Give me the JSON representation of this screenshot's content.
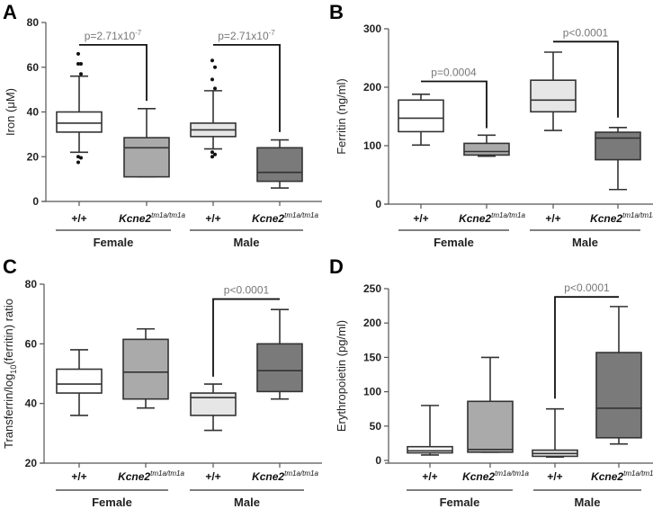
{
  "chart_data": [
    {
      "type": "box",
      "panel": "A",
      "ylabel": "Iron (μM)",
      "ylim": [
        0,
        80
      ],
      "yticks": [
        0,
        20,
        40,
        60,
        80
      ],
      "groups": [
        "Female",
        "Male"
      ],
      "categories": [
        {
          "main": "+/+",
          "sup": ""
        },
        {
          "main": "Kcne2",
          "sup": "tm1a/tm1a"
        },
        {
          "main": "+/+",
          "sup": ""
        },
        {
          "main": "Kcne2",
          "sup": "tm1a/tm1a"
        }
      ],
      "boxes": [
        {
          "group": "Female",
          "genotype": "+/+",
          "fill": "#ffffff",
          "whisker_low": 22,
          "q1": 31,
          "median": 35,
          "q3": 40,
          "whisker_high": 56,
          "outliers": [
            66,
            61.5,
            61.5,
            57,
            20,
            19.5,
            17.5
          ]
        },
        {
          "group": "Female",
          "genotype": "Kcne2 tm1a/tm1a",
          "fill": "#aaaaaa",
          "whisker_low": 11,
          "q1": 11,
          "median": 24,
          "q3": 28.5,
          "whisker_high": 41.5,
          "outliers": []
        },
        {
          "group": "Male",
          "genotype": "+/+",
          "fill": "#e6e6e6",
          "whisker_low": 23.5,
          "q1": 29,
          "median": 32,
          "q3": 35,
          "whisker_high": 49.5,
          "outliers": [
            63,
            60,
            54.5,
            50.5,
            22,
            21,
            20
          ]
        },
        {
          "group": "Male",
          "genotype": "Kcne2 tm1a/tm1a",
          "fill": "#7a7a7a",
          "whisker_low": 6,
          "q1": 9,
          "median": 13,
          "q3": 24,
          "whisker_high": 27.5,
          "outliers": []
        }
      ],
      "brackets": [
        {
          "from": 0,
          "to": 1,
          "top": 70,
          "left_end": 70,
          "right_end": 45,
          "label": "p=2.71x10",
          "label_sup": "-7"
        },
        {
          "from": 2,
          "to": 3,
          "top": 70,
          "left_end": 70,
          "right_end": 31,
          "label": "p=2.71x10",
          "label_sup": "-7"
        }
      ]
    },
    {
      "type": "box",
      "panel": "B",
      "ylabel": "Ferritin (ng/ml)",
      "ylim": [
        0,
        300
      ],
      "yticks": [
        0,
        100,
        200,
        300
      ],
      "groups": [
        "Female",
        "Male"
      ],
      "categories": [
        {
          "main": "+/+",
          "sup": ""
        },
        {
          "main": "Kcne2",
          "sup": "tm1a/tm1a"
        },
        {
          "main": "+/+",
          "sup": ""
        },
        {
          "main": "Kcne2",
          "sup": "tm1a/tm1a"
        }
      ],
      "boxes": [
        {
          "group": "Female",
          "genotype": "+/+",
          "fill": "#ffffff",
          "whisker_low": 101,
          "q1": 124,
          "median": 147,
          "q3": 178,
          "whisker_high": 188,
          "outliers": []
        },
        {
          "group": "Female",
          "genotype": "Kcne2 tm1a/tm1a",
          "fill": "#aaaaaa",
          "whisker_low": 82,
          "q1": 84,
          "median": 90,
          "q3": 104,
          "whisker_high": 118,
          "outliers": []
        },
        {
          "group": "Male",
          "genotype": "+/+",
          "fill": "#e6e6e6",
          "whisker_low": 126,
          "q1": 158,
          "median": 178,
          "q3": 212,
          "whisker_high": 260,
          "outliers": []
        },
        {
          "group": "Male",
          "genotype": "Kcne2 tm1a/tm1a",
          "fill": "#7a7a7a",
          "whisker_low": 25,
          "q1": 76,
          "median": 113,
          "q3": 123,
          "whisker_high": 131,
          "outliers": []
        }
      ],
      "brackets": [
        {
          "from": 0,
          "to": 1,
          "top": 210,
          "left_end": 210,
          "right_end": 130,
          "label": "p=0.0004",
          "label_sup": ""
        },
        {
          "from": 2,
          "to": 3,
          "top": 278,
          "left_end": 278,
          "right_end": 148,
          "label": "p<0.0001",
          "label_sup": ""
        }
      ]
    },
    {
      "type": "box",
      "panel": "C",
      "ylabel": "Transferrin/log",
      "ylabel_sub": "10",
      "ylabel_tail": "(ferritin) ratio",
      "ylim": [
        20,
        80
      ],
      "yticks": [
        20,
        40,
        60,
        80
      ],
      "groups": [
        "Female",
        "Male"
      ],
      "categories": [
        {
          "main": "+/+",
          "sup": ""
        },
        {
          "main": "Kcne2",
          "sup": "tm1a/tm1a"
        },
        {
          "main": "+/+",
          "sup": ""
        },
        {
          "main": "Kcne2",
          "sup": "tm1a/tm1a"
        }
      ],
      "boxes": [
        {
          "group": "Female",
          "genotype": "+/+",
          "fill": "#ffffff",
          "whisker_low": 36,
          "q1": 43.5,
          "median": 46.5,
          "q3": 51.5,
          "whisker_high": 58,
          "outliers": []
        },
        {
          "group": "Female",
          "genotype": "Kcne2 tm1a/tm1a",
          "fill": "#aaaaaa",
          "whisker_low": 38.5,
          "q1": 41.5,
          "median": 50.5,
          "q3": 61.5,
          "whisker_high": 65,
          "outliers": []
        },
        {
          "group": "Male",
          "genotype": "+/+",
          "fill": "#e6e6e6",
          "whisker_low": 31,
          "q1": 36,
          "median": 42,
          "q3": 43.5,
          "whisker_high": 46.5,
          "outliers": []
        },
        {
          "group": "Male",
          "genotype": "Kcne2 tm1a/tm1a",
          "fill": "#7a7a7a",
          "whisker_low": 41.5,
          "q1": 44,
          "median": 51,
          "q3": 60,
          "whisker_high": 71.5,
          "outliers": []
        }
      ],
      "brackets": [
        {
          "from": 2,
          "to": 3,
          "top": 75,
          "left_end": 49,
          "right_end": 75,
          "label": "p<0.0001",
          "label_sup": ""
        }
      ]
    },
    {
      "type": "box",
      "panel": "D",
      "ylabel": "Erythropoietin (pg/ml)",
      "ylim": [
        0,
        250
      ],
      "yticks": [
        0,
        50,
        100,
        150,
        200,
        250
      ],
      "groups": [
        "Female",
        "Male"
      ],
      "categories": [
        {
          "main": "+/+",
          "sup": ""
        },
        {
          "main": "Kcne2",
          "sup": "tm1a/tm1a"
        },
        {
          "main": "+/+",
          "sup": ""
        },
        {
          "main": "Kcne2",
          "sup": "tm1a/tm1a"
        }
      ],
      "boxes": [
        {
          "group": "Female",
          "genotype": "+/+",
          "fill": "#ffffff",
          "whisker_low": 8,
          "q1": 11,
          "median": 14,
          "q3": 20,
          "whisker_high": 80,
          "outliers": []
        },
        {
          "group": "Female",
          "genotype": "Kcne2 tm1a/tm1a",
          "fill": "#aaaaaa",
          "whisker_low": 12,
          "q1": 12,
          "median": 16,
          "q3": 86,
          "whisker_high": 150,
          "outliers": []
        },
        {
          "group": "Male",
          "genotype": "+/+",
          "fill": "#e6e6e6",
          "whisker_low": 5,
          "q1": 6,
          "median": 10,
          "q3": 15,
          "whisker_high": 75,
          "outliers": []
        },
        {
          "group": "Male",
          "genotype": "Kcne2 tm1a/tm1a",
          "fill": "#7a7a7a",
          "whisker_low": 24,
          "q1": 33,
          "median": 76,
          "q3": 157,
          "whisker_high": 224,
          "outliers": []
        }
      ],
      "brackets": [
        {
          "from": 2,
          "to": 3,
          "top": 238,
          "left_end": 90,
          "right_end": 238,
          "label": "p<0.0001",
          "label_sup": ""
        }
      ]
    }
  ]
}
